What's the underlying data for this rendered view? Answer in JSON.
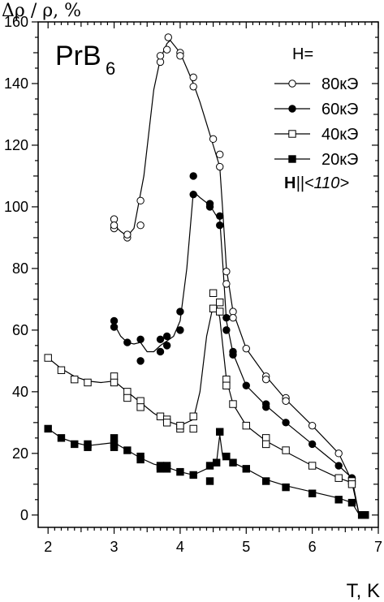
{
  "chart_data": {
    "type": "line",
    "title": "PrB6",
    "title_main": "PrB",
    "title_sub": "6",
    "ylabel": "Δρ / ρ,  %",
    "xlabel": "T, K",
    "xlim": [
      1.85,
      7.0
    ],
    "ylim": [
      -4,
      160
    ],
    "xticks": [
      2,
      3,
      4,
      5,
      6,
      7
    ],
    "yticks": [
      0,
      20,
      40,
      60,
      80,
      100,
      120,
      140,
      160
    ],
    "grid": false,
    "legend_title": "H=",
    "legend_position": "top-right",
    "legend_note_bold": "H",
    "legend_note_rest": "||<110>",
    "series": [
      {
        "name": "80кЭ",
        "marker": "open-circle",
        "points": [
          [
            3.0,
            96
          ],
          [
            3.0,
            93
          ],
          [
            3.0,
            94
          ],
          [
            3.2,
            90
          ],
          [
            3.2,
            91
          ],
          [
            3.4,
            94
          ],
          [
            3.4,
            102
          ],
          [
            3.7,
            147
          ],
          [
            3.7,
            149
          ],
          [
            3.8,
            151
          ],
          [
            3.82,
            155
          ],
          [
            4.0,
            150
          ],
          [
            4.0,
            149
          ],
          [
            4.2,
            142
          ],
          [
            4.2,
            139
          ],
          [
            4.5,
            122
          ],
          [
            4.6,
            117
          ],
          [
            4.6,
            113
          ],
          [
            4.7,
            79
          ],
          [
            4.7,
            75
          ],
          [
            4.8,
            66
          ],
          [
            4.8,
            64
          ],
          [
            5.0,
            54
          ],
          [
            5.3,
            45
          ],
          [
            5.3,
            44
          ],
          [
            5.6,
            38
          ],
          [
            5.6,
            37
          ],
          [
            6.0,
            29
          ],
          [
            6.4,
            20
          ],
          [
            6.6,
            12
          ],
          [
            6.6,
            11
          ],
          [
            6.75,
            0
          ],
          [
            6.8,
            0
          ]
        ],
        "curve": [
          [
            3.0,
            94
          ],
          [
            3.1,
            92
          ],
          [
            3.2,
            90.5
          ],
          [
            3.3,
            93
          ],
          [
            3.45,
            110
          ],
          [
            3.6,
            138
          ],
          [
            3.7,
            148
          ],
          [
            3.8,
            153
          ],
          [
            3.85,
            154
          ],
          [
            4.0,
            150
          ],
          [
            4.1,
            145
          ],
          [
            4.2,
            140
          ],
          [
            4.3,
            134
          ],
          [
            4.4,
            127
          ],
          [
            4.5,
            120
          ],
          [
            4.6,
            113
          ],
          [
            4.65,
            97
          ],
          [
            4.7,
            80
          ],
          [
            4.8,
            66
          ],
          [
            5.0,
            54
          ],
          [
            5.3,
            45
          ],
          [
            5.6,
            37.5
          ],
          [
            6.0,
            29
          ],
          [
            6.4,
            20
          ],
          [
            6.6,
            11
          ],
          [
            6.7,
            1
          ],
          [
            6.8,
            0
          ]
        ]
      },
      {
        "name": "60кЭ",
        "marker": "filled-circle",
        "points": [
          [
            3.0,
            63
          ],
          [
            3.0,
            61
          ],
          [
            3.2,
            56
          ],
          [
            3.4,
            57
          ],
          [
            3.4,
            50
          ],
          [
            3.7,
            57
          ],
          [
            3.7,
            53
          ],
          [
            3.8,
            58
          ],
          [
            3.8,
            55
          ],
          [
            4.0,
            66
          ],
          [
            4.0,
            60
          ],
          [
            4.2,
            110
          ],
          [
            4.2,
            104
          ],
          [
            4.45,
            101
          ],
          [
            4.45,
            100
          ],
          [
            4.6,
            97
          ],
          [
            4.6,
            94
          ],
          [
            4.7,
            64
          ],
          [
            4.7,
            60
          ],
          [
            4.8,
            53
          ],
          [
            4.8,
            52
          ],
          [
            5.0,
            42
          ],
          [
            5.3,
            36
          ],
          [
            5.3,
            35
          ],
          [
            5.6,
            30
          ],
          [
            6.0,
            23
          ],
          [
            6.4,
            16
          ],
          [
            6.6,
            12
          ],
          [
            6.75,
            0
          ],
          [
            6.8,
            0
          ]
        ],
        "curve": [
          [
            3.0,
            62
          ],
          [
            3.1,
            58
          ],
          [
            3.2,
            56
          ],
          [
            3.3,
            55.5
          ],
          [
            3.4,
            56
          ],
          [
            3.5,
            53
          ],
          [
            3.6,
            53
          ],
          [
            3.7,
            55
          ],
          [
            3.8,
            56.5
          ],
          [
            3.9,
            58
          ],
          [
            4.0,
            63
          ],
          [
            4.1,
            80
          ],
          [
            4.2,
            105
          ],
          [
            4.3,
            103
          ],
          [
            4.45,
            100.5
          ],
          [
            4.55,
            97
          ],
          [
            4.6,
            96
          ],
          [
            4.65,
            80
          ],
          [
            4.7,
            63
          ],
          [
            4.8,
            52.5
          ],
          [
            5.0,
            42
          ],
          [
            5.3,
            35.5
          ],
          [
            5.6,
            30
          ],
          [
            6.0,
            23
          ],
          [
            6.4,
            16
          ],
          [
            6.6,
            12
          ],
          [
            6.7,
            1
          ],
          [
            6.8,
            0
          ]
        ]
      },
      {
        "name": "40кЭ",
        "marker": "open-square",
        "points": [
          [
            2.0,
            51
          ],
          [
            2.2,
            47
          ],
          [
            2.4,
            44
          ],
          [
            2.6,
            43
          ],
          [
            3.0,
            45
          ],
          [
            3.0,
            43
          ],
          [
            3.2,
            40
          ],
          [
            3.2,
            38
          ],
          [
            3.4,
            37
          ],
          [
            3.4,
            35
          ],
          [
            3.7,
            32
          ],
          [
            3.8,
            31
          ],
          [
            3.8,
            30
          ],
          [
            4.0,
            28
          ],
          [
            4.0,
            29
          ],
          [
            4.2,
            32
          ],
          [
            4.2,
            28
          ],
          [
            4.5,
            72
          ],
          [
            4.5,
            67
          ],
          [
            4.6,
            69
          ],
          [
            4.6,
            66
          ],
          [
            4.7,
            44
          ],
          [
            4.7,
            42
          ],
          [
            4.8,
            36
          ],
          [
            5.0,
            29
          ],
          [
            5.3,
            25
          ],
          [
            5.3,
            23
          ],
          [
            5.6,
            21
          ],
          [
            6.0,
            16
          ],
          [
            6.4,
            12
          ],
          [
            6.6,
            11
          ],
          [
            6.6,
            10
          ],
          [
            6.75,
            0
          ],
          [
            6.8,
            0
          ]
        ],
        "curve": [
          [
            2.0,
            51
          ],
          [
            2.2,
            47.5
          ],
          [
            2.4,
            45
          ],
          [
            2.6,
            43.5
          ],
          [
            2.8,
            43
          ],
          [
            3.0,
            43.5
          ],
          [
            3.2,
            40
          ],
          [
            3.4,
            36.5
          ],
          [
            3.6,
            33
          ],
          [
            3.8,
            30.5
          ],
          [
            4.0,
            29
          ],
          [
            4.2,
            31
          ],
          [
            4.3,
            40
          ],
          [
            4.4,
            58
          ],
          [
            4.5,
            68
          ],
          [
            4.55,
            68
          ],
          [
            4.6,
            64
          ],
          [
            4.65,
            54
          ],
          [
            4.7,
            44
          ],
          [
            4.8,
            36
          ],
          [
            5.0,
            29
          ],
          [
            5.3,
            24
          ],
          [
            5.6,
            20.5
          ],
          [
            6.0,
            16
          ],
          [
            6.4,
            12
          ],
          [
            6.6,
            10.5
          ],
          [
            6.7,
            1
          ],
          [
            6.8,
            0
          ]
        ]
      },
      {
        "name": "20кЭ",
        "marker": "filled-square",
        "points": [
          [
            2.0,
            28
          ],
          [
            2.2,
            25
          ],
          [
            2.4,
            23
          ],
          [
            2.6,
            23
          ],
          [
            2.6,
            22
          ],
          [
            3.0,
            25
          ],
          [
            3.0,
            22
          ],
          [
            3.0,
            23
          ],
          [
            3.2,
            21
          ],
          [
            3.4,
            19
          ],
          [
            3.4,
            18
          ],
          [
            3.7,
            16
          ],
          [
            3.7,
            15
          ],
          [
            3.8,
            16
          ],
          [
            3.8,
            15
          ],
          [
            4.0,
            14
          ],
          [
            4.2,
            13
          ],
          [
            4.45,
            16
          ],
          [
            4.45,
            11
          ],
          [
            4.55,
            17
          ],
          [
            4.6,
            27
          ],
          [
            4.7,
            19
          ],
          [
            4.8,
            17
          ],
          [
            5.0,
            15
          ],
          [
            5.3,
            11
          ],
          [
            5.6,
            9
          ],
          [
            6.0,
            7
          ],
          [
            6.4,
            5
          ],
          [
            6.6,
            4
          ],
          [
            6.75,
            0
          ],
          [
            6.8,
            0
          ]
        ],
        "curve": [
          [
            2.0,
            28
          ],
          [
            2.2,
            25
          ],
          [
            2.4,
            23.5
          ],
          [
            2.6,
            22.5
          ],
          [
            3.0,
            23.5
          ],
          [
            3.2,
            21
          ],
          [
            3.4,
            18.5
          ],
          [
            3.6,
            16.5
          ],
          [
            3.8,
            15.5
          ],
          [
            4.0,
            14
          ],
          [
            4.2,
            13
          ],
          [
            4.4,
            15
          ],
          [
            4.5,
            16
          ],
          [
            4.55,
            17
          ],
          [
            4.6,
            26
          ],
          [
            4.65,
            18
          ],
          [
            4.7,
            19
          ],
          [
            4.8,
            17
          ],
          [
            5.0,
            15
          ],
          [
            5.3,
            11.5
          ],
          [
            5.6,
            9.5
          ],
          [
            6.0,
            7.5
          ],
          [
            6.4,
            5.5
          ],
          [
            6.6,
            4
          ],
          [
            6.7,
            0.5
          ],
          [
            6.8,
            0
          ]
        ]
      }
    ]
  }
}
